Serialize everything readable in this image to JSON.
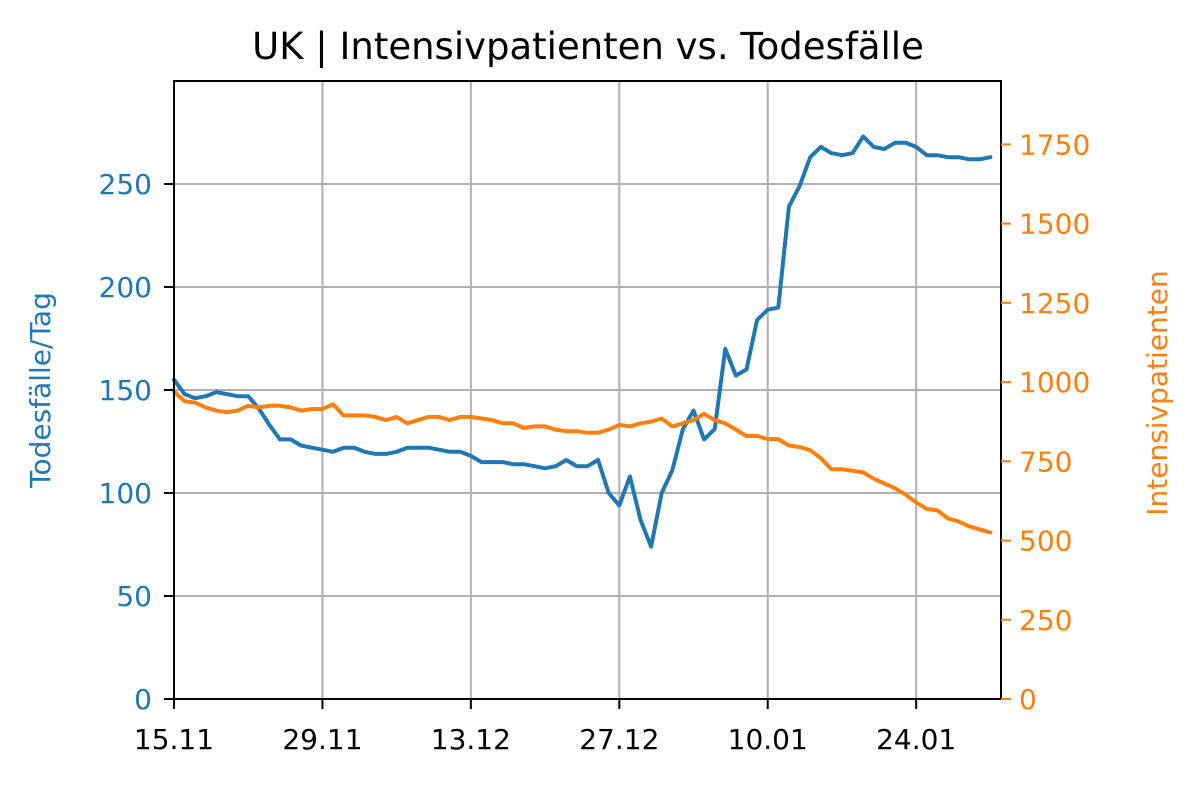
{
  "chart_data": {
    "type": "line",
    "title": "UK | Intensivpatienten vs. Todesfälle",
    "x_tick_labels": [
      "15.11",
      "29.11",
      "13.12",
      "27.12",
      "10.01",
      "24.01"
    ],
    "x_tick_days": [
      0,
      14,
      28,
      42,
      56,
      70
    ],
    "y_left": {
      "label": "Todesfälle/Tag",
      "ticks": [
        0,
        50,
        100,
        150,
        200,
        250
      ],
      "range": [
        0,
        300
      ],
      "color": "#1f77b4"
    },
    "y_right": {
      "label": "Intensivpatienten",
      "ticks": [
        0,
        250,
        500,
        750,
        1000,
        1250,
        1500,
        1750
      ],
      "range": [
        0,
        1950
      ],
      "color": "#ff7f0e"
    },
    "grid": true,
    "x_range_days": [
      0,
      78
    ],
    "series": [
      {
        "name": "Todesfälle/Tag",
        "axis": "left",
        "color": "#1f77b4",
        "values": [
          155,
          148,
          146,
          147,
          149,
          148,
          147,
          147,
          141,
          133,
          126,
          126,
          123,
          122,
          121,
          120,
          122,
          122,
          120,
          119,
          119,
          120,
          122,
          122,
          122,
          121,
          120,
          120,
          118,
          115,
          115,
          115,
          114,
          114,
          113,
          112,
          113,
          116,
          113,
          113,
          116,
          100,
          94,
          108,
          87,
          74,
          100,
          111,
          131,
          140,
          126,
          131,
          170,
          157,
          160,
          184,
          189,
          190,
          239,
          249,
          263,
          268,
          265,
          264,
          265,
          273,
          268,
          267,
          270,
          270,
          268,
          264,
          264,
          263,
          263,
          262,
          262,
          263
        ]
      },
      {
        "name": "Intensivpatienten",
        "axis": "right",
        "color": "#ff7f0e",
        "values": [
          970,
          940,
          935,
          920,
          910,
          905,
          910,
          925,
          920,
          925,
          925,
          920,
          910,
          915,
          915,
          930,
          895,
          895,
          895,
          890,
          880,
          890,
          870,
          880,
          890,
          890,
          880,
          890,
          890,
          885,
          880,
          870,
          870,
          855,
          860,
          860,
          850,
          845,
          845,
          840,
          840,
          850,
          865,
          860,
          870,
          875,
          885,
          860,
          870,
          880,
          900,
          880,
          870,
          850,
          830,
          830,
          820,
          820,
          800,
          795,
          785,
          760,
          725,
          725,
          720,
          715,
          695,
          680,
          665,
          645,
          620,
          600,
          595,
          570,
          560,
          545,
          535,
          525
        ]
      }
    ]
  }
}
